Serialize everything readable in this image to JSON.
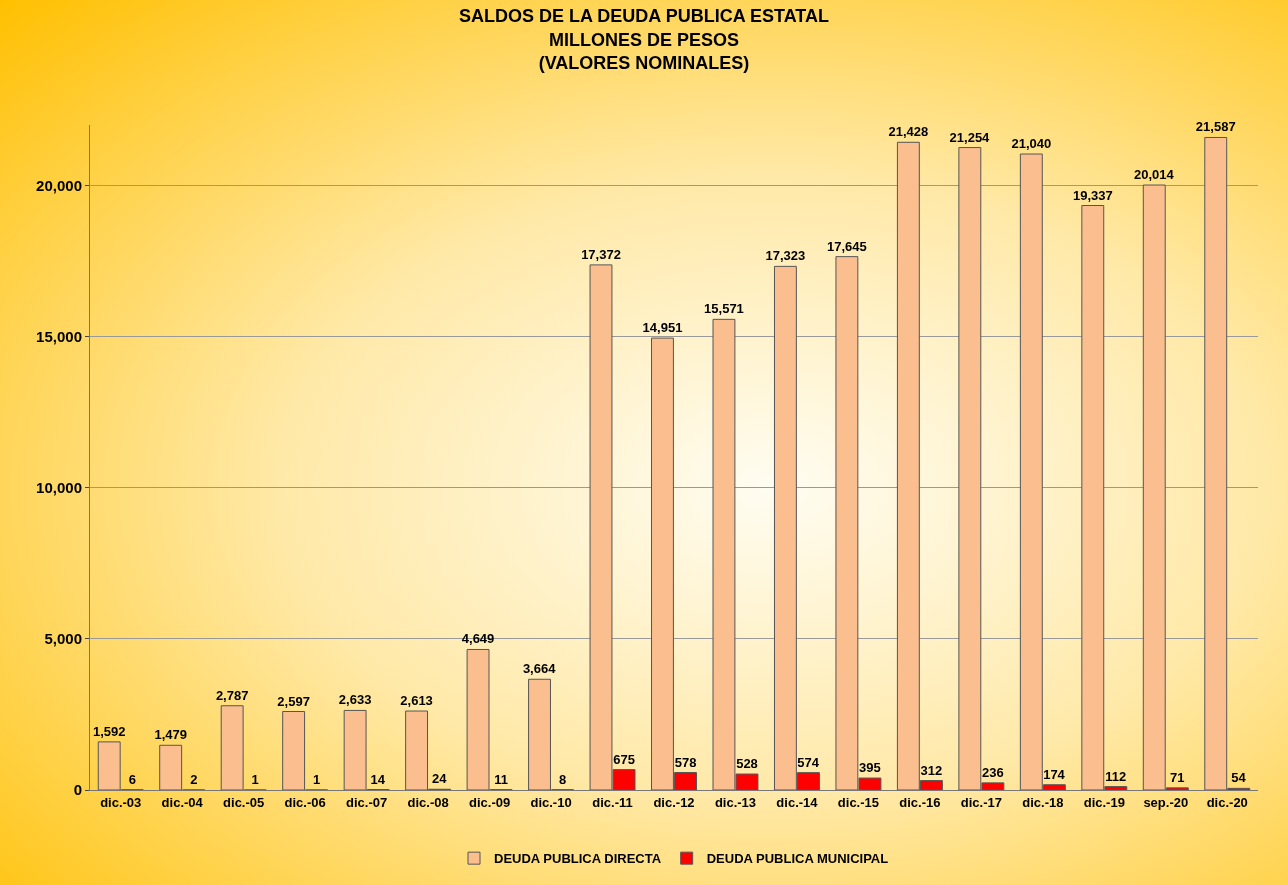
{
  "chart_data": {
    "type": "bar",
    "title": "SALDOS DE LA DEUDA PUBLICA ESTATAL\nMILLONES DE PESOS\n(VALORES NOMINALES)",
    "categories": [
      "dic.-03",
      "dic.-04",
      "dic.-05",
      "dic.-06",
      "dic.-07",
      "dic.-08",
      "dic.-09",
      "dic.-10",
      "dic.-11",
      "dic.-12",
      "dic.-13",
      "dic.-14",
      "dic.-15",
      "dic.-16",
      "dic.-17",
      "dic.-18",
      "dic.-19",
      "sep.-20",
      "dic.-20"
    ],
    "series": [
      {
        "name": "DEUDA PUBLICA DIRECTA",
        "color": "#fbbf8f",
        "values": [
          1592,
          1479,
          2787,
          2597,
          2633,
          2613,
          4649,
          3664,
          17372,
          14951,
          15571,
          17323,
          17645,
          21428,
          21254,
          21040,
          19337,
          20014,
          21587
        ],
        "value_labels": [
          "1,592",
          "1,479",
          "2,787",
          "2,597",
          "2,633",
          "2,613",
          "4,649",
          "3,664",
          "17,372",
          "14,951",
          "15,571",
          "17,323",
          "17,645",
          "21,428",
          "21,254",
          "21,040",
          "19,337",
          "20,014",
          "21,587"
        ]
      },
      {
        "name": "DEUDA PUBLICA MUNICIPAL",
        "color": "#ff0000",
        "values": [
          6,
          2,
          1,
          1,
          14,
          24,
          11,
          8,
          675,
          578,
          528,
          574,
          395,
          312,
          236,
          174,
          112,
          71,
          54
        ],
        "value_labels": [
          "6",
          "2",
          "1",
          "1",
          "14",
          "24",
          "11",
          "8",
          "675",
          "578",
          "528",
          "574",
          "395",
          "312",
          "236",
          "174",
          "112",
          "71",
          "54"
        ]
      }
    ],
    "ylim": [
      0,
      22000
    ],
    "yticks": [
      {
        "value": 0,
        "label": "0"
      },
      {
        "value": 5000,
        "label": "5,000"
      },
      {
        "value": 10000,
        "label": "10,000"
      },
      {
        "value": 15000,
        "label": "15,000"
      },
      {
        "value": 20000,
        "label": "20,000"
      }
    ],
    "grid": "y",
    "legend": "bottom"
  }
}
